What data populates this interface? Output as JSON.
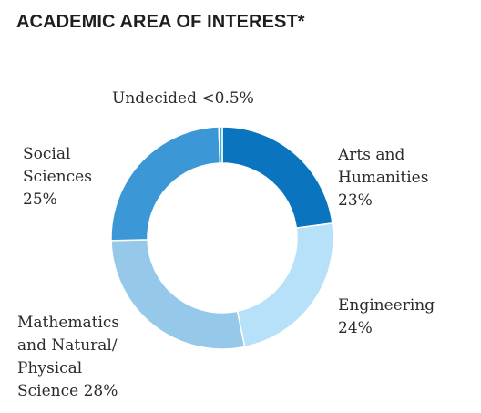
{
  "chart_data": {
    "type": "pie",
    "title": "ACADEMIC AREA OF INTEREST*",
    "slices": [
      {
        "label": "Arts and Humanities",
        "value": 23,
        "value_text": "23%",
        "color": "#0a74bf"
      },
      {
        "label": "Engineering",
        "value": 24,
        "value_text": "24%",
        "color": "#b6e1f8"
      },
      {
        "label": "Mathematics and Natural/ Physical Science",
        "value": 28,
        "value_text": "28%",
        "color": "#96c8ea"
      },
      {
        "label": "Social Sciences",
        "value": 25,
        "value_text": "25%",
        "color": "#3c97d6"
      },
      {
        "label": "Undecided",
        "value": 0.5,
        "value_text": "<0.5%",
        "color": "#43a8dc"
      }
    ],
    "label_lines": {
      "arts": [
        "Arts and",
        "Humanities",
        "23%"
      ],
      "engineering": [
        "Engineering",
        "24%"
      ],
      "math": [
        "Mathematics",
        "and Natural/",
        "Physical",
        "Science 28%"
      ],
      "social": [
        "Social",
        "Sciences",
        "25%"
      ],
      "undecided": [
        "Undecided <0.5%"
      ]
    }
  }
}
